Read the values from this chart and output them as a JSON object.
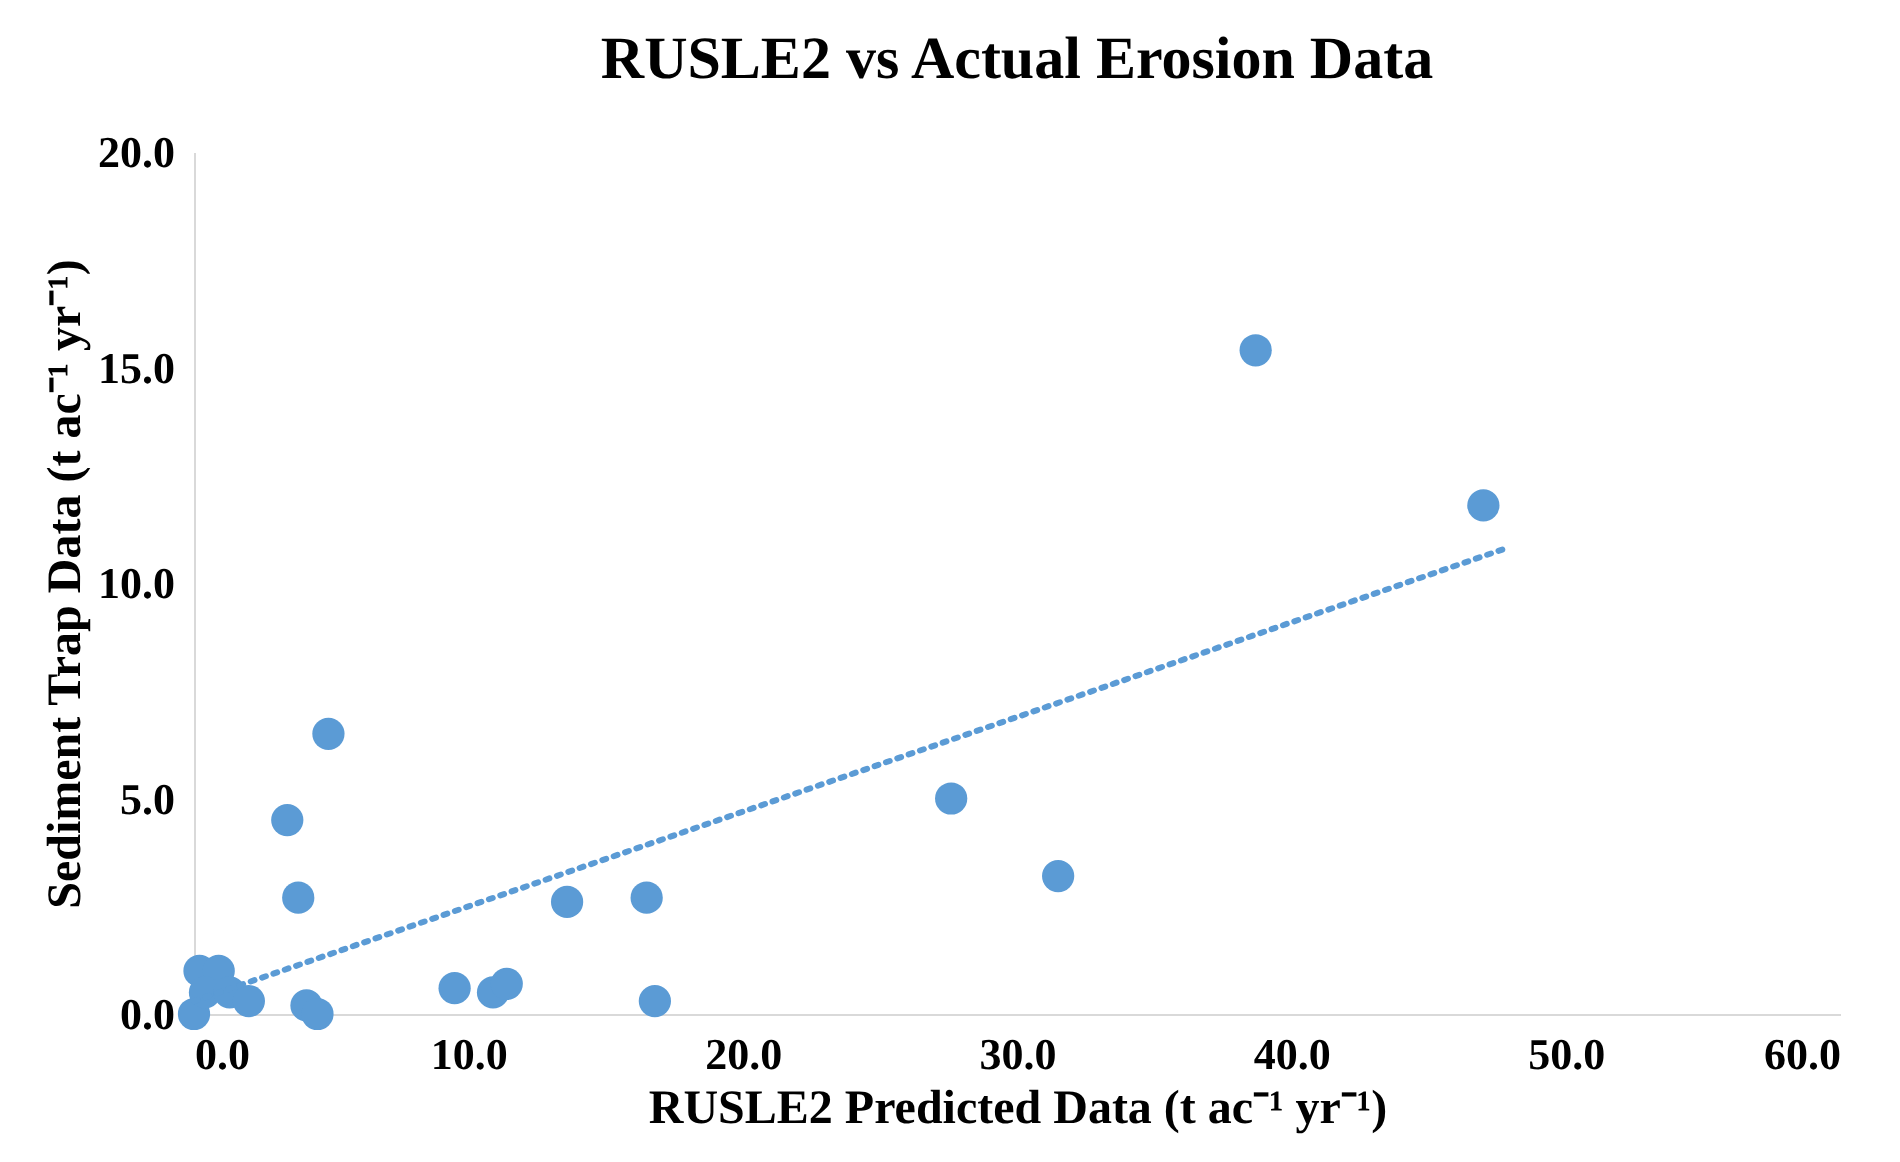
{
  "chart_data": {
    "type": "scatter",
    "title": "RUSLE2 vs Actual Erosion Data",
    "xlabel": "RUSLE2 Predicted Data (t ac⁻¹ yr⁻¹)",
    "ylabel": "Sediment Trap Data (t ac⁻¹ yr⁻¹)",
    "xlim": [
      0,
      60
    ],
    "ylim": [
      0,
      20
    ],
    "xticks": [
      {
        "value": 0,
        "label": "0.0"
      },
      {
        "value": 10,
        "label": "10.0"
      },
      {
        "value": 20,
        "label": "20.0"
      },
      {
        "value": 30,
        "label": "30.0"
      },
      {
        "value": 40,
        "label": "40.0"
      },
      {
        "value": 50,
        "label": "50.0"
      },
      {
        "value": 60,
        "label": "60.0"
      }
    ],
    "yticks": [
      {
        "value": 0,
        "label": "0.0"
      },
      {
        "value": 5,
        "label": "5.0"
      },
      {
        "value": 10,
        "label": "10.0"
      },
      {
        "value": 15,
        "label": "15.0"
      },
      {
        "value": 20,
        "label": "20.0"
      }
    ],
    "grid": false,
    "series": [
      {
        "color": "#5b9bd5",
        "marker": "circle",
        "x": [
          0,
          0.2,
          0.9,
          0.4,
          1.3,
          2.0,
          3.4,
          3.8,
          4.1,
          4.5,
          4.9,
          9.5,
          10.9,
          11.4,
          13.6,
          16.5,
          16.8,
          27.6,
          31.5,
          38.7,
          47.0
        ],
        "values": [
          0,
          1.0,
          1.0,
          0.5,
          0.5,
          0.3,
          4.5,
          2.7,
          0.2,
          0.0,
          6.5,
          0.6,
          0.5,
          0.7,
          2.6,
          2.7,
          0.3,
          5.0,
          3.2,
          15.4,
          11.8
        ]
      },
      {
        "type": "line",
        "color": "#5b9bd5",
        "marker": "none",
        "line_style": "dotted",
        "x": [
          0,
          47.8
        ],
        "values": [
          0.3,
          10.8
        ]
      }
    ]
  }
}
